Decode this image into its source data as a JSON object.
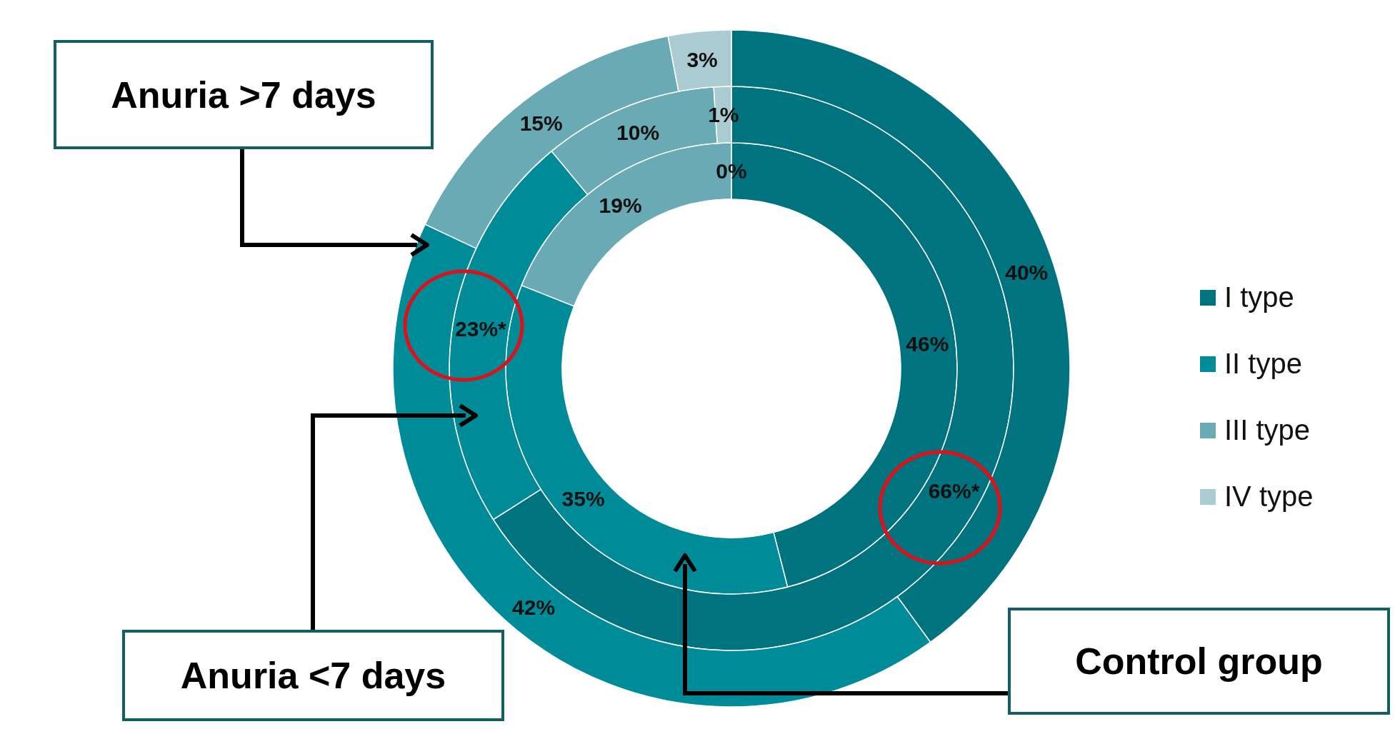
{
  "chart_data": {
    "type": "donut",
    "categories": [
      "I type",
      "II type",
      "III type",
      "IV type"
    ],
    "colors": [
      "#00737f",
      "#008b98",
      "#6aaab5",
      "#a9cbd1"
    ],
    "legend": "right",
    "annotations": [
      "Control group",
      "Anuria <7 days",
      "Anuria >7 days"
    ],
    "series": [
      {
        "values": [
          46,
          35,
          19,
          0
        ],
        "value_labels": [
          "46%",
          "35%",
          "19%",
          "0%"
        ]
      },
      {
        "values": [
          66,
          23,
          10,
          1
        ],
        "value_labels": [
          "66%*",
          "23%*",
          "10%",
          "1%"
        ]
      },
      {
        "values": [
          40,
          42,
          15,
          3
        ],
        "value_labels": [
          "40%",
          "42%",
          "15%",
          "3%"
        ]
      }
    ]
  }
}
